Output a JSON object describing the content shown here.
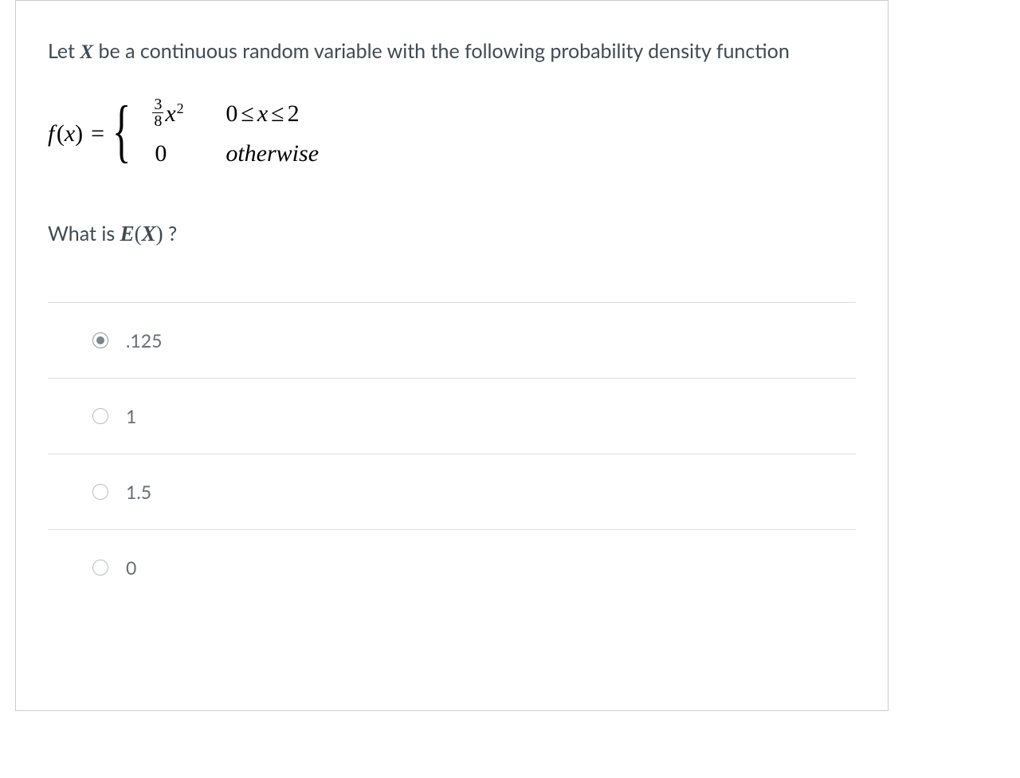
{
  "question": {
    "intro_pre": "Let ",
    "intro_var": "X",
    "intro_post": " be a continuous random variable with the following probability density function",
    "formula": {
      "lhs_f": "f",
      "lhs_x": "x",
      "case1_frac_num": "3",
      "case1_frac_den": "8",
      "case1_x": "x",
      "case1_exp": "2",
      "case1_cond_lo": "0",
      "case1_cond_mid": "x",
      "case1_cond_hi": "2",
      "case1_le": "≤",
      "case2_val": "0",
      "case2_cond": "otherwise"
    },
    "ask_pre": "What is ",
    "ask_E": "E",
    "ask_X": "X",
    "ask_post": " ?"
  },
  "answers": [
    {
      "label": ".125",
      "selected": true
    },
    {
      "label": "1",
      "selected": false
    },
    {
      "label": "1.5",
      "selected": false
    },
    {
      "label": "0",
      "selected": false
    }
  ],
  "colors": {
    "border": "#c7cdd1",
    "divider": "#dbdee0",
    "text": "#3f4a52",
    "muted": "#666e74",
    "radio_border": "#b8bec2",
    "radio_dot": "#7b858c",
    "background": "#ffffff"
  }
}
